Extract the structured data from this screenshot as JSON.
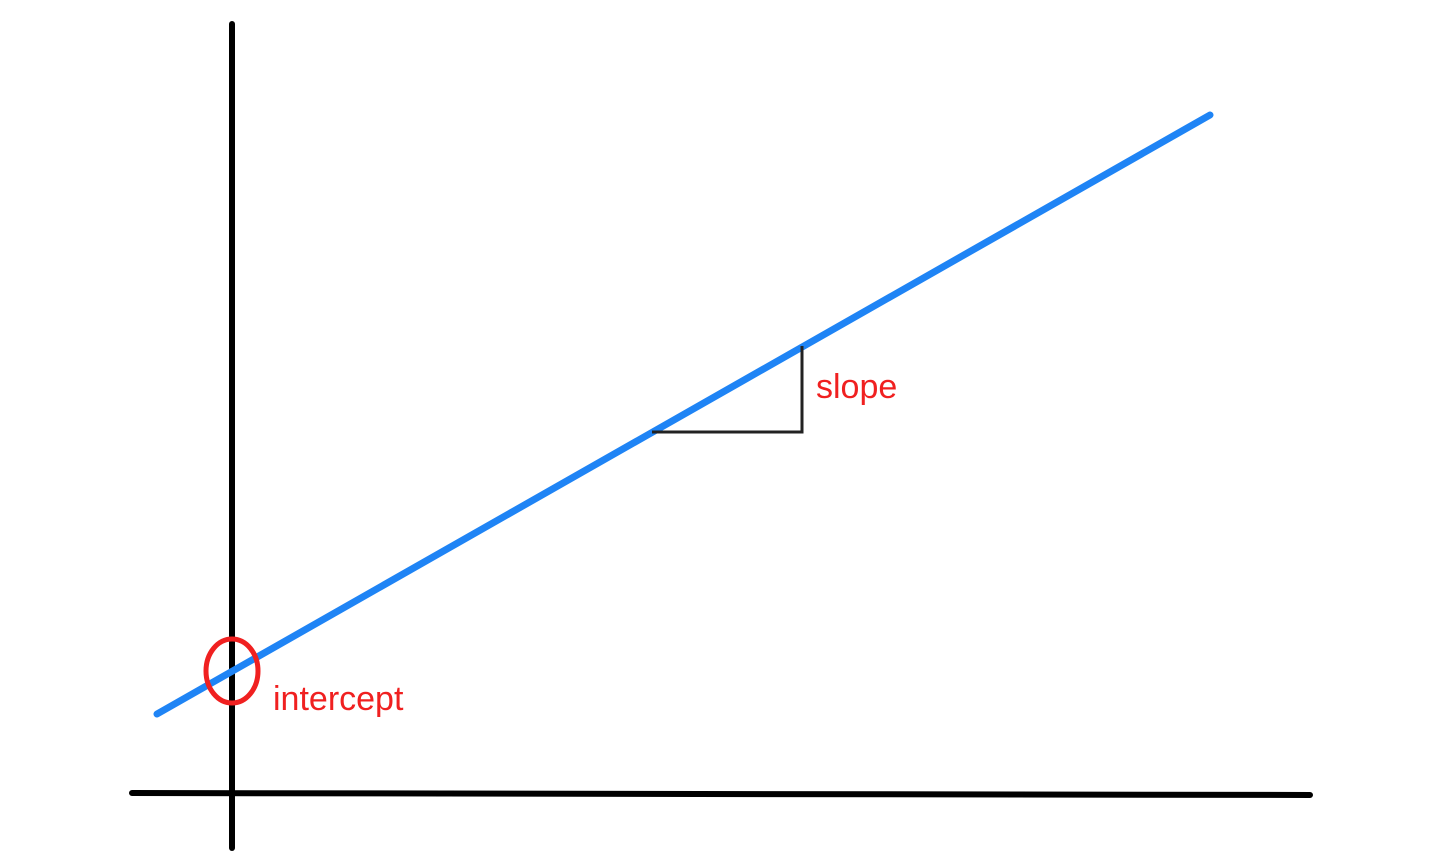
{
  "labels": {
    "slope": "slope",
    "intercept": "intercept"
  },
  "colors": {
    "background": "#ffffff",
    "axes": "#000000",
    "line": "#1f84f5",
    "annotation": "#f02020",
    "slope_triangle": "#222222"
  }
}
